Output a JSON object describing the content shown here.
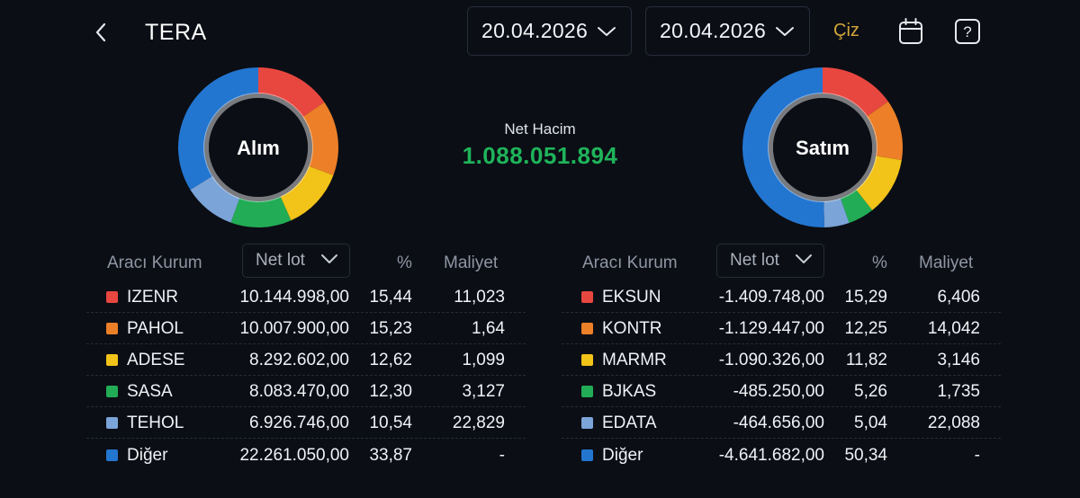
{
  "header": {
    "title": "TERA",
    "start_date": "20.04.2026",
    "end_date": "20.04.2026",
    "draw_label": "Çiz",
    "icons": {
      "back": "chevron-left-icon",
      "calendar": "calendar-icon",
      "help": "help-icon"
    }
  },
  "summary": {
    "net_label": "Net Hacim",
    "net_value": "1.088.051.894",
    "net_color": "#1fb45a"
  },
  "buy": {
    "donut_label": "Alım",
    "headers": {
      "broker": "Aracı Kurum",
      "metric": "Net lot",
      "pct": "%",
      "cost": "Maliyet"
    },
    "rows": [
      {
        "name": "IZENR",
        "lot": "10.144.998,00",
        "pct": "15,44",
        "cost": "11,023",
        "color": "#e8473f",
        "share": 15.44
      },
      {
        "name": "PAHOL",
        "lot": "10.007.900,00",
        "pct": "15,23",
        "cost": "1,64",
        "color": "#ec7f27",
        "share": 15.23
      },
      {
        "name": "ADESE",
        "lot": "8.292.602,00",
        "pct": "12,62",
        "cost": "1,099",
        "color": "#f2c318",
        "share": 12.62
      },
      {
        "name": "SASA",
        "lot": "8.083.470,00",
        "pct": "12,30",
        "cost": "3,127",
        "color": "#22ac55",
        "share": 12.3
      },
      {
        "name": "TEHOL",
        "lot": "6.926.746,00",
        "pct": "10,54",
        "cost": "22,829",
        "color": "#7ba4d8",
        "share": 10.54
      },
      {
        "name": "Diğer",
        "lot": "22.261.050,00",
        "pct": "33,87",
        "cost": "-",
        "color": "#2376d0",
        "share": 33.87
      }
    ]
  },
  "sell": {
    "donut_label": "Satım",
    "headers": {
      "broker": "Aracı Kurum",
      "metric": "Net lot",
      "pct": "%",
      "cost": "Maliyet"
    },
    "rows": [
      {
        "name": "EKSUN",
        "lot": "-1.409.748,00",
        "pct": "15,29",
        "cost": "6,406",
        "color": "#e8473f",
        "share": 15.29
      },
      {
        "name": "KONTR",
        "lot": "-1.129.447,00",
        "pct": "12,25",
        "cost": "14,042",
        "color": "#ec7f27",
        "share": 12.25
      },
      {
        "name": "MARMR",
        "lot": "-1.090.326,00",
        "pct": "11,82",
        "cost": "3,146",
        "color": "#f2c318",
        "share": 11.82
      },
      {
        "name": "BJKAS",
        "lot": "-485.250,00",
        "pct": "5,26",
        "cost": "1,735",
        "color": "#22ac55",
        "share": 5.26
      },
      {
        "name": "EDATA",
        "lot": "-464.656,00",
        "pct": "5,04",
        "cost": "22,088",
        "color": "#7ba4d8",
        "share": 5.04
      },
      {
        "name": "Diğer",
        "lot": "-4.641.682,00",
        "pct": "50,34",
        "cost": "-",
        "color": "#2376d0",
        "share": 50.34
      }
    ]
  }
}
